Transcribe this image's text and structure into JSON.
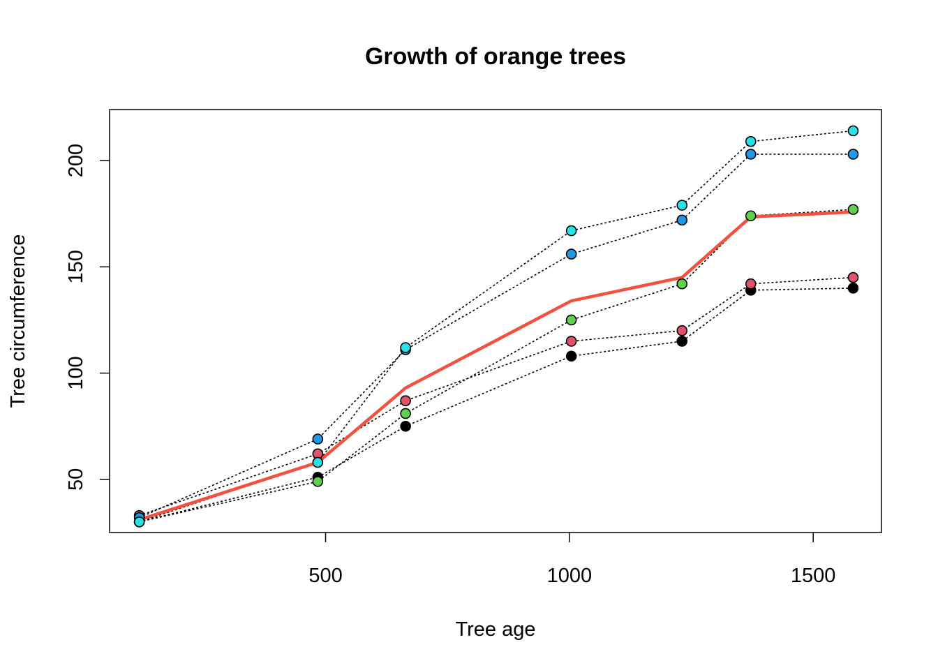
{
  "chart_data": {
    "type": "line",
    "title": "Growth of orange trees",
    "xlabel": "Tree age",
    "ylabel": "Tree circumference",
    "xlim": [
      57,
      1640
    ],
    "ylim": [
      25,
      224
    ],
    "x_ticks": [
      500,
      1000,
      1500
    ],
    "y_ticks": [
      50,
      100,
      150,
      200
    ],
    "grid": false,
    "legend": "none",
    "x": [
      118,
      484,
      664,
      1004,
      1231,
      1372,
      1582
    ],
    "series": [
      {
        "color": "#000000",
        "line": "dotted",
        "values": [
          30,
          51,
          75,
          108,
          115,
          139,
          140
        ]
      },
      {
        "color": "#DF536B",
        "line": "dotted",
        "values": [
          33,
          62,
          87,
          115,
          120,
          142,
          145
        ]
      },
      {
        "color": "#61D04F",
        "line": "dotted",
        "values": [
          30,
          49,
          81,
          125,
          142,
          174,
          177
        ]
      },
      {
        "color": "#2297E6",
        "line": "dotted",
        "values": [
          32,
          69,
          111,
          156,
          172,
          203,
          203
        ]
      },
      {
        "color": "#28E2E5",
        "line": "dotted",
        "values": [
          30,
          58,
          112,
          167,
          179,
          209,
          214
        ]
      },
      {
        "color": "#F4503E",
        "line": "solid-thick",
        "values": [
          31,
          58,
          93,
          134,
          145,
          173.5,
          175.8
        ]
      }
    ]
  }
}
